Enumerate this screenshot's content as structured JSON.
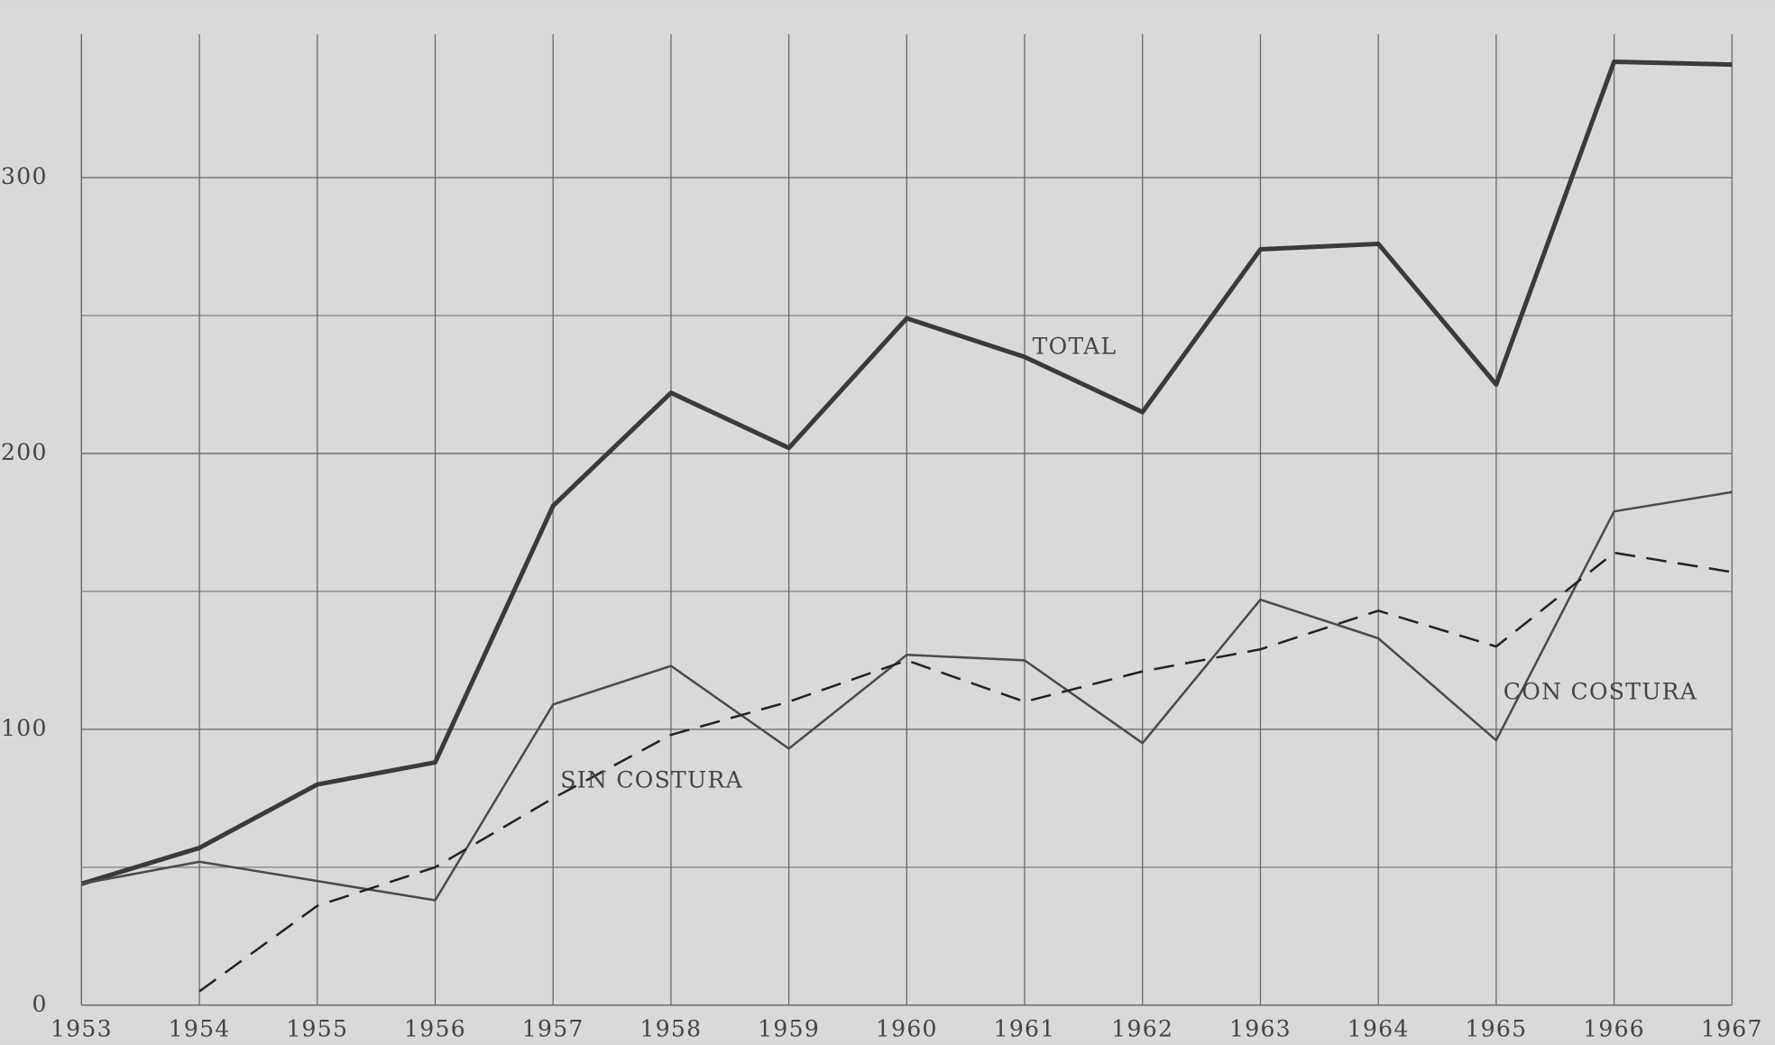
{
  "chart_data": {
    "type": "line",
    "x": [
      1953,
      1954,
      1955,
      1956,
      1957,
      1958,
      1959,
      1960,
      1961,
      1962,
      1963,
      1964,
      1965,
      1966,
      1967
    ],
    "series": [
      {
        "name": "TOTAL",
        "color": "#3a3a3a",
        "dashed": false,
        "values": [
          44,
          57,
          80,
          88,
          181,
          222,
          202,
          249,
          235,
          215,
          274,
          276,
          225,
          342,
          341
        ]
      },
      {
        "name": "CON COSTURA",
        "color": "#4a4a4a",
        "dashed": false,
        "values": [
          44,
          52,
          45,
          38,
          109,
          123,
          93,
          127,
          125,
          95,
          147,
          133,
          96,
          179,
          186
        ]
      },
      {
        "name": "SIN COSTURA",
        "color": "#222222",
        "dashed": true,
        "values": [
          null,
          5,
          36,
          50,
          75,
          98,
          110,
          125,
          110,
          121,
          129,
          143,
          130,
          164,
          157
        ]
      }
    ],
    "xlim": [
      1953,
      1967
    ],
    "ylim": [
      0,
      352
    ],
    "yticks": [
      0,
      100,
      200,
      300
    ],
    "minor_ygrid": [
      50,
      150,
      250
    ],
    "grid": true
  }
}
